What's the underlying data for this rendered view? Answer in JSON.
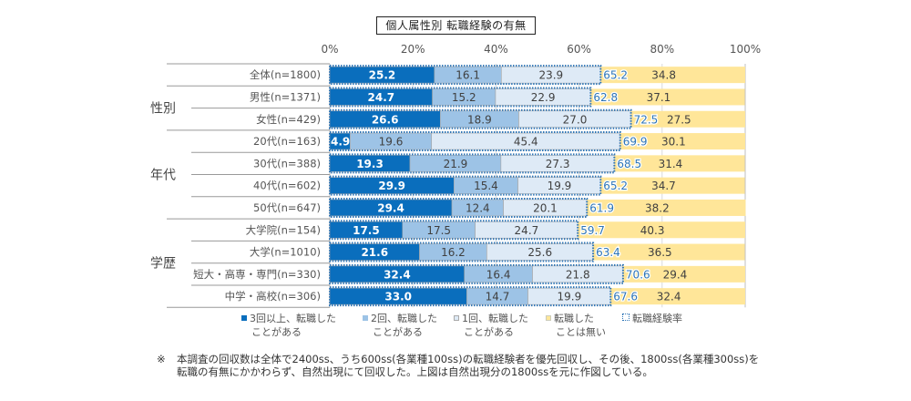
{
  "chart_data": {
    "type": "bar",
    "orientation": "horizontal-stacked-100",
    "title": "個人属性別 転職経験の有無",
    "xlabel": "",
    "ylabel": "",
    "xlim": [
      0,
      100
    ],
    "x_ticks": [
      "0%",
      "20%",
      "40%",
      "60%",
      "80%",
      "100%"
    ],
    "grid": true,
    "legend_position": "bottom",
    "groups": [
      {
        "label": "",
        "rows": [
          0
        ]
      },
      {
        "label": "性別",
        "rows": [
          1,
          2
        ]
      },
      {
        "label": "年代",
        "rows": [
          3,
          4,
          5,
          6
        ]
      },
      {
        "label": "学歴",
        "rows": [
          7,
          8,
          9,
          10
        ]
      }
    ],
    "categories": [
      "全体(n=1800)",
      "男性(n=1371)",
      "女性(n=429)",
      "20代(n=163)",
      "30代(n=388)",
      "40代(n=602)",
      "50代(n=647)",
      "大学院(n=154)",
      "大学(n=1010)",
      "短大・高専・専門(n=330)",
      "中学・高校(n=306)"
    ],
    "series": [
      {
        "name": "3回以上、転職したことがある",
        "color": "#0a6ebd",
        "label_color": "#ffffff",
        "values": [
          25.2,
          24.7,
          26.6,
          4.9,
          19.3,
          29.9,
          29.4,
          17.5,
          21.6,
          32.4,
          33.0
        ]
      },
      {
        "name": "2回、転職したことがある",
        "color": "#9dc3e6",
        "label_color": "#404040",
        "values": [
          16.1,
          15.2,
          18.9,
          19.6,
          21.9,
          15.4,
          12.4,
          17.5,
          16.2,
          16.4,
          14.7
        ]
      },
      {
        "name": "1回、転職したことがある",
        "color": "#deeaf6",
        "label_color": "#404040",
        "values": [
          23.9,
          22.9,
          27.0,
          45.4,
          27.3,
          19.9,
          20.1,
          24.7,
          25.6,
          21.8,
          19.9
        ]
      },
      {
        "name": "転職したことは無い",
        "color": "#ffe699",
        "label_color": "#404040",
        "values": [
          34.8,
          37.1,
          27.5,
          30.1,
          31.4,
          34.7,
          38.2,
          40.3,
          36.5,
          29.4,
          32.4
        ]
      }
    ],
    "overlay": {
      "name": "転職経験率",
      "color": "#2e75b6",
      "style": "dotted-outline",
      "values": [
        65.2,
        62.8,
        72.5,
        69.9,
        68.5,
        65.2,
        61.9,
        59.7,
        63.4,
        70.6,
        67.6
      ]
    }
  },
  "legend": [
    {
      "line1": "3回以上、転職した",
      "line2": "ことがある",
      "icon": "square-dark-blue"
    },
    {
      "line1": "2回、転職した",
      "line2": "ことがある",
      "icon": "square-mid-blue"
    },
    {
      "line1": "1回、転職した",
      "line2": "ことがある",
      "icon": "square-light-blue"
    },
    {
      "line1": "転職した",
      "line2": "ことは無い",
      "icon": "square-yellow"
    },
    {
      "line1": "転職経験率",
      "line2": "",
      "icon": "dotted-square"
    }
  ],
  "footnote": {
    "mark": "※",
    "text": "本調査の回収数は全体で2400ss、うち600ss(各業種100ss)の転職経験者を優先回収し、その後、1800ss(各業種300ss)を転職の有無にかかわらず、自然出現にて回収した。上図は自然出現分の1800ssを元に作図している。"
  }
}
